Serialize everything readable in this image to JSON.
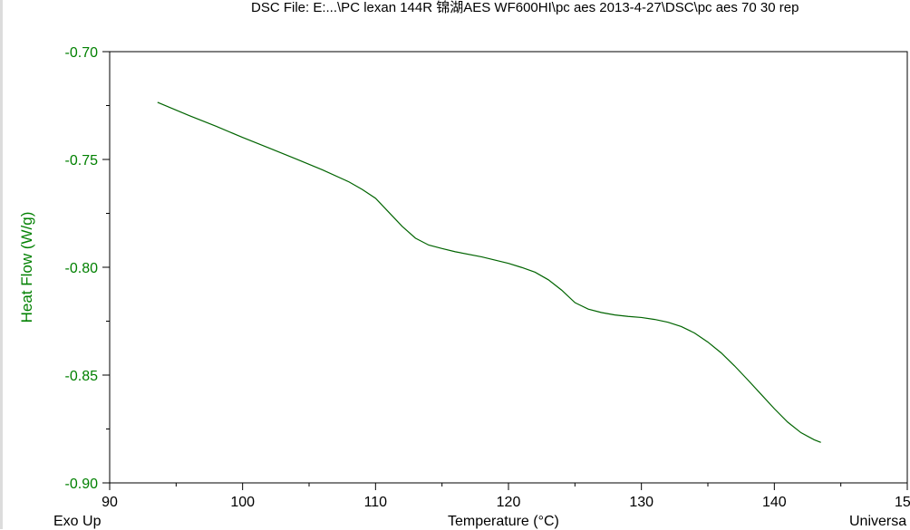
{
  "header": {
    "title": "DSC File: E:...\\PC lexan 144R  锦湖AES WF600HI\\pc aes 2013-4-27\\DSC\\pc aes 70 30 rep"
  },
  "footer": {
    "exo_label": "Exo Up",
    "universal_label": "Universa"
  },
  "colors": {
    "data_line": "#006400",
    "y_axis_text": "#008000",
    "axis": "#000000"
  },
  "chart_data": {
    "type": "line",
    "title": "",
    "xlabel": "Temperature (°C)",
    "ylabel": "Heat Flow (W/g)",
    "xlim": [
      90,
      150
    ],
    "ylim": [
      -0.9,
      -0.7
    ],
    "x_ticks": [
      "90",
      "100",
      "110",
      "120",
      "130",
      "140",
      "15"
    ],
    "y_ticks": [
      "-0.70",
      "-0.75",
      "-0.80",
      "-0.85",
      "-0.90"
    ],
    "grid": false,
    "series": [
      {
        "x": [
          93.6,
          96,
          98,
          100,
          102,
          104,
          106,
          108,
          109,
          110,
          111,
          112,
          113,
          114,
          115,
          116,
          118,
          120,
          121,
          122,
          123,
          124,
          125,
          126,
          127,
          128,
          129,
          130,
          131,
          132,
          133,
          134,
          135,
          136,
          137,
          138,
          139,
          140,
          141,
          142,
          143,
          143.5
        ],
        "y": [
          -0.7235,
          -0.7297,
          -0.7346,
          -0.7398,
          -0.7447,
          -0.7497,
          -0.7548,
          -0.7604,
          -0.7639,
          -0.768,
          -0.7745,
          -0.781,
          -0.7865,
          -0.7897,
          -0.7913,
          -0.7928,
          -0.7952,
          -0.7982,
          -0.8001,
          -0.8023,
          -0.8058,
          -0.8106,
          -0.8164,
          -0.8194,
          -0.821,
          -0.8221,
          -0.8228,
          -0.8233,
          -0.8242,
          -0.8255,
          -0.8275,
          -0.8305,
          -0.8347,
          -0.8397,
          -0.8457,
          -0.8522,
          -0.8589,
          -0.8656,
          -0.8718,
          -0.8767,
          -0.88,
          -0.8812
        ]
      }
    ]
  }
}
